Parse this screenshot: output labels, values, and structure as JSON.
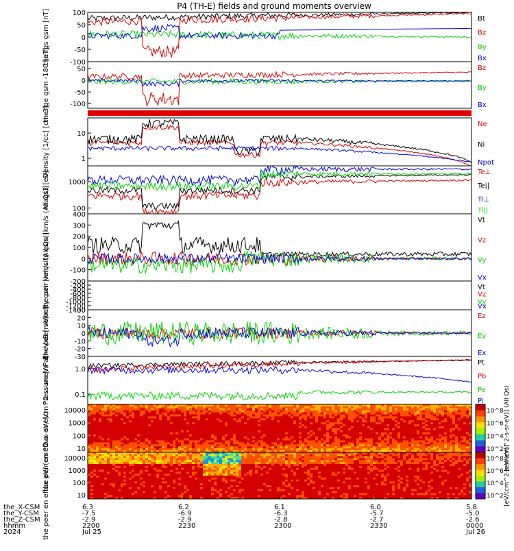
{
  "title": "P4 (TH-E) fields and ground moments overview",
  "colors": {
    "black": "#000000",
    "red": "#e00000",
    "green": "#00d800",
    "blue": "#0000e0"
  },
  "chart_data": {
    "type": "line",
    "title": "P4 (TH-E) fields and ground moments overview",
    "time": {
      "ticks_hhmm": [
        "2200",
        "2230",
        "2300",
        "2330",
        "0000"
      ],
      "dates": [
        "Jul 25",
        "",
        "",
        "",
        "Jul 26"
      ],
      "year": "2024",
      "range": [
        "2024-07-25 22:00",
        "2024-07-26 00:00"
      ]
    },
    "ephemeris": [
      {
        "label": "the_X-CSM",
        "values": [
          "6.3",
          "6.2",
          "6.1",
          "6.0",
          "5.8"
        ]
      },
      {
        "label": "the_Y-CSM",
        "values": [
          "-7.5",
          "-6.9",
          "-6.3",
          "-5.7",
          "-5.0"
        ]
      },
      {
        "label": "the_Z-CSM",
        "values": [
          "-2.9",
          "-2.9",
          "-2.8",
          "-2.7",
          "-2.6"
        ]
      },
      {
        "label": "hhmm",
        "values": [
          "2200",
          "2230",
          "2300",
          "2330",
          "0000"
        ]
      }
    ],
    "panels": [
      {
        "id": "fgs",
        "ylabel": [
          "the",
          "fgs",
          "gsm",
          "[nT]"
        ],
        "ylim": [
          -100,
          100
        ],
        "log": false,
        "yticks": [
          "100",
          "50",
          "0",
          "-50",
          "-100"
        ],
        "series": [
          {
            "name": "Bt",
            "color": "black"
          },
          {
            "name": "Bz",
            "color": "red"
          },
          {
            "name": "By",
            "color": "green"
          },
          {
            "name": "Bx",
            "color": "blue"
          }
        ]
      },
      {
        "id": "fge",
        "ylabel": [
          "the",
          "fge",
          "gsm",
          "-180",
          "[nT]"
        ],
        "ylim": [
          -120,
          80
        ],
        "log": false,
        "yticks": [
          "50",
          "0",
          "-50",
          "-100"
        ],
        "series": [
          {
            "name": "Bz",
            "color": "red"
          },
          {
            "name": "By",
            "color": "green"
          },
          {
            "name": "Bx",
            "color": "blue"
          }
        ]
      },
      {
        "id": "density",
        "ylabel": [
          "Density",
          "[1/cc]",
          "[cm-3]"
        ],
        "ylim": [
          0.5,
          40
        ],
        "log": true,
        "yticks": [
          "10",
          "1"
        ],
        "series": [
          {
            "name": "Ne",
            "color": "red"
          },
          {
            "name": "Ni",
            "color": "black"
          },
          {
            "name": "Npot",
            "color": "blue"
          }
        ]
      },
      {
        "id": "temp",
        "ylabel": [
          "magt3",
          "[eV]"
        ],
        "ylim": [
          60,
          4000
        ],
        "log": true,
        "yticks": [
          "1000",
          "100"
        ],
        "series": [
          {
            "name": "Te⊥",
            "color": "red"
          },
          {
            "name": "Te||",
            "color": "black"
          },
          {
            "name": "Ti⊥",
            "color": "blue"
          },
          {
            "name": "Ti||",
            "color": "green"
          }
        ]
      },
      {
        "id": "peir_vel",
        "ylabel": [
          "the",
          "peir",
          "velocity",
          "gsm",
          "[km/s (All Qs)]"
        ],
        "ylim": [
          -200,
          400
        ],
        "log": false,
        "yticks": [
          "400",
          "300",
          "200",
          "100",
          "0",
          "-100",
          "-200"
        ],
        "series": [
          {
            "name": "Vt",
            "color": "black"
          },
          {
            "name": "Vz",
            "color": "red"
          },
          {
            "name": "Vy",
            "color": "green"
          },
          {
            "name": "Vx",
            "color": "blue"
          }
        ]
      },
      {
        "id": "peer_vel",
        "ylabel": [
          "the",
          "peer",
          "velocity",
          "gsm",
          "[km/s (All Qs)]"
        ],
        "ylim": [
          -1400,
          0
        ],
        "log": false,
        "yticks": [
          "-200",
          "-400",
          "-600",
          "-800",
          "-1000",
          "-1200",
          "-1400"
        ],
        "series": [
          {
            "name": "Vt",
            "color": "black"
          },
          {
            "name": "Vz",
            "color": "red"
          },
          {
            "name": "Vy",
            "color": "green"
          },
          {
            "name": "Vx",
            "color": "blue"
          }
        ]
      },
      {
        "id": "efield",
        "ylabel": [
          "E=-VxB",
          "[mV/m]"
        ],
        "ylim": [
          -30,
          30
        ],
        "log": false,
        "yticks": [
          "30",
          "20",
          "10",
          "0",
          "-10",
          "-20",
          "-30"
        ],
        "series": [
          {
            "name": "Ez",
            "color": "red"
          },
          {
            "name": "Ey",
            "color": "green"
          },
          {
            "name": "Ex",
            "color": "blue"
          }
        ]
      },
      {
        "id": "pressure",
        "ylabel": [
          "Pressure",
          "[nPa]"
        ],
        "ylim": [
          0.04,
          3
        ],
        "log": true,
        "yticks": [
          "1.0",
          "0.1"
        ],
        "series": [
          {
            "name": "Pt",
            "color": "black"
          },
          {
            "name": "Pb",
            "color": "red"
          },
          {
            "name": "Pe",
            "color": "green"
          },
          {
            "name": "Pi",
            "color": "blue"
          }
        ]
      },
      {
        "id": "peir_spec",
        "type": "heatmap",
        "ylabel": [
          "the",
          "peir",
          "en",
          "eflux",
          "eV/",
          "(cm^2-s-",
          "sr-eV)"
        ],
        "yticks": [
          "10000",
          "1000",
          "100",
          "10"
        ],
        "colorbar_ticks": [
          "10^8",
          "10^6",
          "10^4",
          "10^2"
        ],
        "colorbar_label": "[eV/(cm^2-s-sr-eV)] (All Qs)"
      },
      {
        "id": "peer_spec",
        "type": "heatmap",
        "ylabel": [
          "the",
          "peer",
          "en",
          "eflux",
          "eV/",
          "(cm^2-s-",
          "sr-eV)"
        ],
        "yticks": [
          "10000",
          "1000",
          "100",
          "10"
        ],
        "colorbar_ticks": [
          "10^8",
          "10^6",
          "10^4",
          "10^2"
        ],
        "colorbar_label": "[eV/(cm^2-s-sr-eV)]"
      }
    ]
  }
}
